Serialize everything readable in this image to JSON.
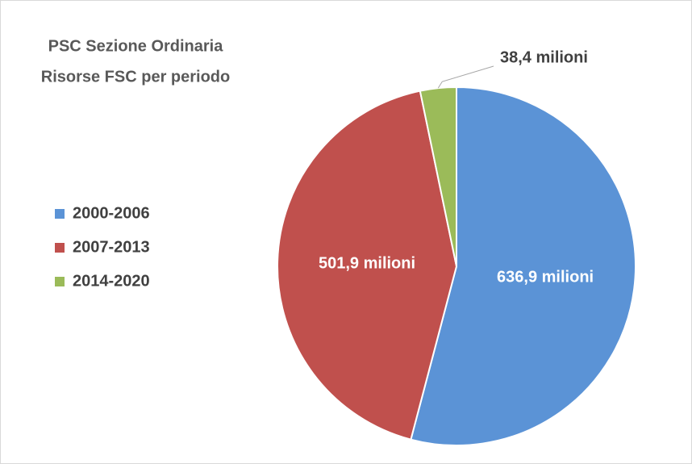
{
  "chart_data": {
    "type": "pie",
    "title": "PSC Sezione Ordinaria",
    "subtitle": "Risorse FSC per periodo",
    "categories": [
      "2000-2006",
      "2007-2013",
      "2014-2020"
    ],
    "values": [
      636.9,
      501.9,
      38.4
    ],
    "value_labels": [
      "636,9 milioni",
      "501,9 milioni",
      "38,4 milioni"
    ],
    "colors": [
      "#5b93d6",
      "#c0504d",
      "#9bbb59"
    ],
    "legend": "left"
  }
}
